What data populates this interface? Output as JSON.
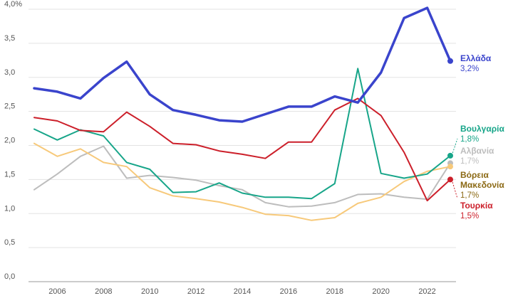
{
  "chart_data": {
    "type": "line",
    "x": [
      2005,
      2006,
      2007,
      2008,
      2009,
      2010,
      2011,
      2012,
      2013,
      2014,
      2015,
      2016,
      2017,
      2018,
      2019,
      2020,
      2021,
      2022,
      2023
    ],
    "x_tick_labels": [
      "2006",
      "2008",
      "2010",
      "2012",
      "2014",
      "2016",
      "2018",
      "2020",
      "2022"
    ],
    "y_tick_labels": [
      "0,0",
      "0,5",
      "1,0",
      "1,5",
      "2,0",
      "2,5",
      "3,0",
      "3,5",
      "4,0%"
    ],
    "ylim": [
      0,
      4.0
    ],
    "grid": true,
    "series": [
      {
        "name": "Ελλάδα",
        "end_label": "3,2%",
        "color": "#3a44cc",
        "values": [
          2.84,
          2.79,
          2.69,
          2.99,
          3.23,
          2.75,
          2.52,
          2.45,
          2.37,
          2.35,
          2.46,
          2.57,
          2.57,
          2.72,
          2.63,
          3.07,
          3.87,
          4.02,
          3.24
        ]
      },
      {
        "name": "Βουλγαρία",
        "end_label": "1,8%",
        "color": "#17a589",
        "values": [
          2.24,
          2.08,
          2.23,
          2.14,
          1.75,
          1.65,
          1.31,
          1.32,
          1.45,
          1.3,
          1.24,
          1.24,
          1.22,
          1.44,
          3.13,
          1.59,
          1.52,
          1.58,
          1.85
        ]
      },
      {
        "name": "Αλβανία",
        "end_label": "1,7%",
        "color": "#bdbdbd",
        "values": [
          1.35,
          1.58,
          1.84,
          1.99,
          1.52,
          1.56,
          1.53,
          1.49,
          1.41,
          1.35,
          1.16,
          1.1,
          1.11,
          1.16,
          1.28,
          1.29,
          1.24,
          1.21,
          1.74
        ]
      },
      {
        "name": "Βόρεια Μακεδονία",
        "name_lines": [
          "Βόρεια",
          "Μακεδονία"
        ],
        "end_label": "1,7%",
        "color": "#f7c97a",
        "values": [
          2.03,
          1.84,
          1.95,
          1.75,
          1.69,
          1.38,
          1.26,
          1.22,
          1.17,
          1.09,
          0.99,
          0.97,
          0.9,
          0.94,
          1.15,
          1.24,
          1.47,
          1.62,
          1.69
        ]
      },
      {
        "name": "Τουρκία",
        "end_label": "1,5%",
        "color": "#cc1f2a",
        "values": [
          2.41,
          2.36,
          2.22,
          2.2,
          2.49,
          2.28,
          2.03,
          2.01,
          1.92,
          1.87,
          1.81,
          2.05,
          2.05,
          2.52,
          2.69,
          2.44,
          1.9,
          1.19,
          1.5
        ]
      }
    ],
    "legend_colors": {
      "Βόρεια Μακεδονία": "#8b6914"
    }
  }
}
